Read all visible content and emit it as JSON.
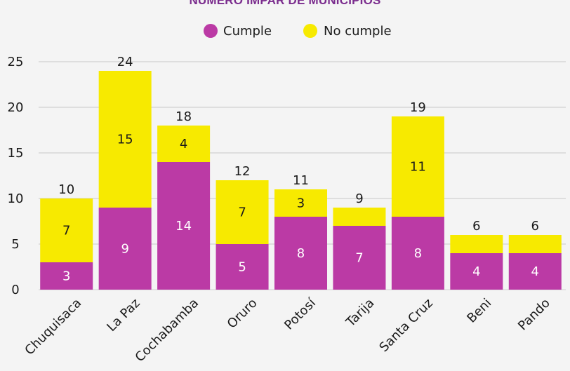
{
  "chart_data": {
    "type": "bar",
    "stacked": true,
    "title": "NÚMERO IMPAR DE MUNICIPIOS",
    "categories": [
      "Chuquisaca",
      "La Paz",
      "Cochabamba",
      "Oruro",
      "Potosí",
      "Tarija",
      "Santa Cruz",
      "Beni",
      "Pando"
    ],
    "series": [
      {
        "name": "Cumple",
        "color": "#bb3aa5",
        "values": [
          3,
          9,
          14,
          5,
          8,
          7,
          8,
          4,
          4
        ]
      },
      {
        "name": "No cumple",
        "color": "#f7ea00",
        "values": [
          7,
          15,
          4,
          7,
          3,
          2,
          11,
          2,
          2
        ]
      }
    ],
    "segment_labels": {
      "Cumple": [
        "3",
        "9",
        "14",
        "5",
        "8",
        "7",
        "8",
        "4",
        "4"
      ],
      "No cumple": [
        "7",
        "15",
        "4",
        "7",
        "3",
        "",
        "11",
        "",
        ""
      ]
    },
    "totals": [
      10,
      24,
      18,
      12,
      11,
      9,
      19,
      6,
      6
    ],
    "yticks": [
      0,
      5,
      10,
      15,
      20,
      25
    ],
    "ylim": [
      0,
      27
    ],
    "xlabel": "",
    "ylabel": "",
    "grid": true,
    "legend_position": "top-center"
  }
}
